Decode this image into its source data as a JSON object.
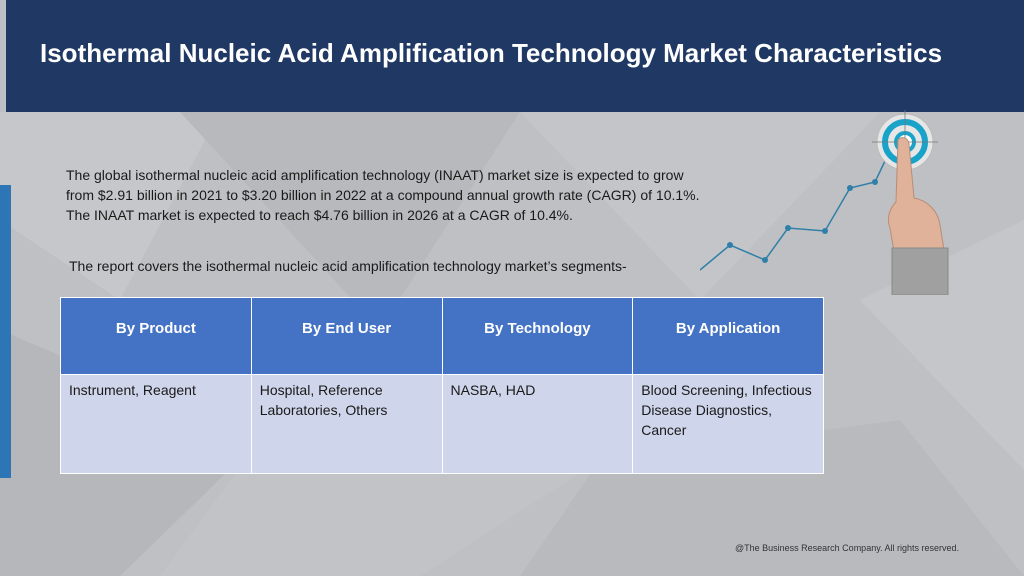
{
  "header": {
    "title": "Isothermal Nucleic Acid Amplification Technology Market Characteristics"
  },
  "intro": {
    "paragraph": "The global isothermal nucleic acid amplification technology (INAAT) market size is expected to grow from $2.91 billion in 2021 to $3.20 billion in 2022 at a compound annual growth rate (CAGR) of 10.1%. The INAAT market is expected to reach $4.76 billion in 2026 at a CAGR of 10.4%.",
    "segments_line": "The report covers the isothermal nucleic acid amplification technology market’s segments-"
  },
  "table": {
    "headers": [
      "By Product",
      "By End User",
      "By Technology",
      "By Application"
    ],
    "cells": [
      "Instrument, Reagent",
      "Hospital, Reference Laboratories, Others",
      "NASBA, HAD",
      " Blood Screening, Infectious Disease Diagnostics, Cancer"
    ]
  },
  "footer": {
    "copyright": "@The Business Research Company. All rights reserved."
  },
  "colors": {
    "header_bg": "#1f3864",
    "table_header_bg": "#4472c4",
    "table_cell_bg": "#cfd5ea",
    "accent_bar": "#2e75b6",
    "page_bg": "#bfc0c3"
  },
  "icons": [
    "target-icon",
    "pointing-hand-icon",
    "growth-line-icon"
  ]
}
